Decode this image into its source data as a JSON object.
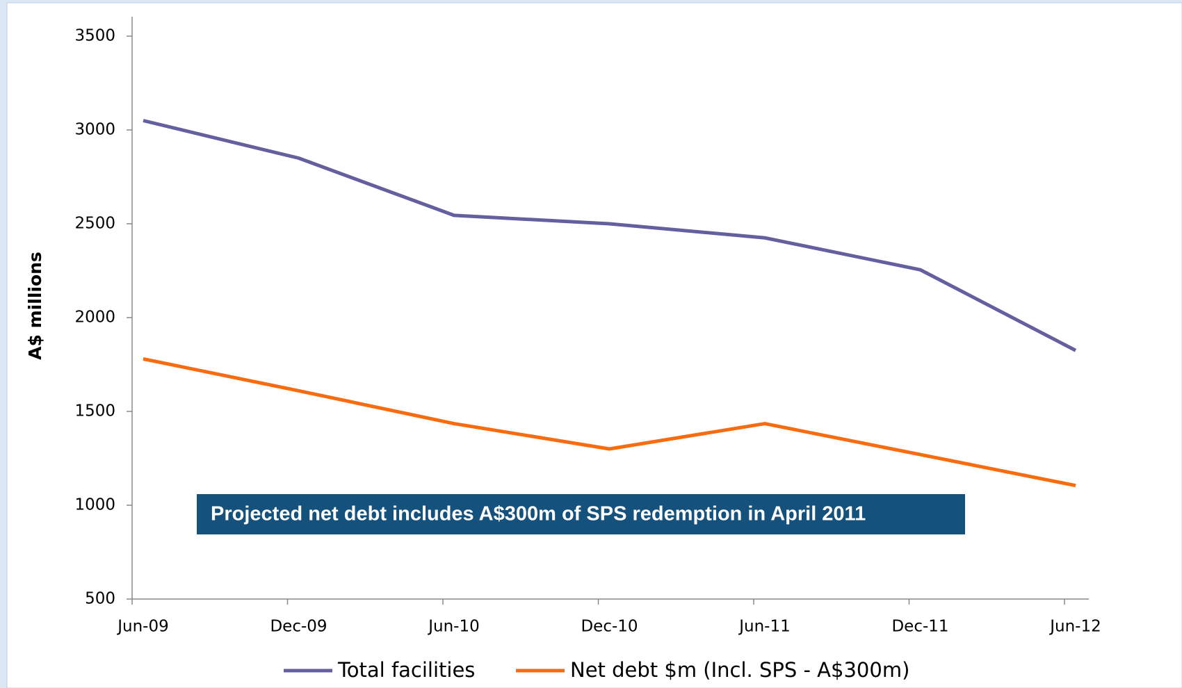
{
  "chart_data": {
    "type": "line",
    "y_axis_label": "A$ millions",
    "annotation": "Projected net debt includes A$300m of SPS redemption in April 2011",
    "categories": [
      "Jun-09",
      "Dec-09",
      "Jun-10",
      "Dec-10",
      "Jun-11",
      "Dec-11",
      "Jun-12"
    ],
    "series": [
      {
        "name": "Total facilities",
        "color": "#645f9e",
        "values": [
          3050,
          2850,
          2545,
          2500,
          2425,
          2255,
          1825
        ]
      },
      {
        "name": "Net debt $m (Incl. SPS - A$300m)",
        "color": "#f96b0f",
        "values": [
          1780,
          1610,
          1435,
          1300,
          1435,
          1270,
          1105
        ]
      }
    ],
    "ylim": [
      500,
      3500
    ],
    "yticks": [
      500,
      1000,
      1500,
      2000,
      2500,
      3000,
      3500
    ],
    "legend": "bottom"
  }
}
